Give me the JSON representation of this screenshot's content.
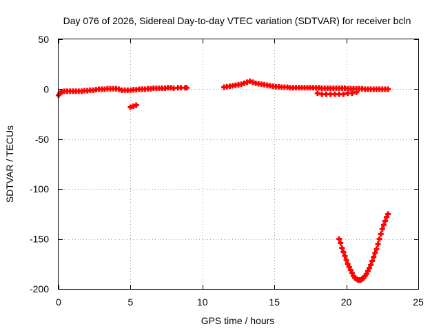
{
  "chart_data": {
    "type": "scatter",
    "title": "Day 076 of 2026, Sidereal Day-to-day VTEC variation (SDTVAR) for receiver bcln",
    "xlabel": "GPS time / hours",
    "ylabel": "SDTVAR / TECUs",
    "xlim": [
      0,
      25
    ],
    "ylim": [
      -200,
      50
    ],
    "xticks": [
      0,
      5,
      10,
      15,
      20,
      25
    ],
    "yticks": [
      50,
      0,
      -50,
      -100,
      -150,
      -200
    ],
    "grid": true,
    "marker_color": "#ff0000",
    "series": [
      {
        "name": "SDTVAR",
        "points": [
          [
            0.0,
            -6
          ],
          [
            0.1,
            -4
          ],
          [
            0.2,
            -3
          ],
          [
            0.4,
            -2
          ],
          [
            0.6,
            -2
          ],
          [
            0.8,
            -2
          ],
          [
            1.0,
            -2
          ],
          [
            1.2,
            -2
          ],
          [
            1.4,
            -2
          ],
          [
            1.6,
            -2
          ],
          [
            1.8,
            -1.5
          ],
          [
            2.0,
            -1.5
          ],
          [
            2.2,
            -1
          ],
          [
            2.4,
            -1
          ],
          [
            2.6,
            -0.5
          ],
          [
            2.8,
            0
          ],
          [
            3.0,
            0
          ],
          [
            3.2,
            0
          ],
          [
            3.4,
            0.5
          ],
          [
            3.6,
            0.5
          ],
          [
            3.8,
            0.5
          ],
          [
            4.0,
            0.5
          ],
          [
            4.2,
            0
          ],
          [
            4.4,
            -1
          ],
          [
            4.6,
            -1
          ],
          [
            4.8,
            -1
          ],
          [
            5.0,
            -1
          ],
          [
            5.2,
            -0.5
          ],
          [
            5.4,
            -0.5
          ],
          [
            5.6,
            0
          ],
          [
            5.8,
            0
          ],
          [
            6.0,
            0
          ],
          [
            6.2,
            0.5
          ],
          [
            6.4,
            0.5
          ],
          [
            6.6,
            1
          ],
          [
            6.8,
            1
          ],
          [
            7.0,
            1
          ],
          [
            7.2,
            1
          ],
          [
            7.4,
            1
          ],
          [
            7.6,
            1.5
          ],
          [
            7.8,
            1.5
          ],
          [
            8.0,
            1
          ],
          [
            8.3,
            1.5
          ],
          [
            8.5,
            1.5
          ],
          [
            8.8,
            1.5
          ],
          [
            8.9,
            1.5
          ],
          [
            5.0,
            -18
          ],
          [
            5.2,
            -17
          ],
          [
            5.4,
            -16
          ],
          [
            11.5,
            2
          ],
          [
            11.7,
            2.5
          ],
          [
            11.9,
            3
          ],
          [
            12.1,
            3.5
          ],
          [
            12.3,
            4
          ],
          [
            12.5,
            4.5
          ],
          [
            12.7,
            5
          ],
          [
            12.9,
            6
          ],
          [
            13.1,
            7
          ],
          [
            13.3,
            8
          ],
          [
            13.5,
            7
          ],
          [
            13.7,
            6
          ],
          [
            13.9,
            5.5
          ],
          [
            14.1,
            5
          ],
          [
            14.3,
            4.5
          ],
          [
            14.5,
            4
          ],
          [
            14.7,
            3.5
          ],
          [
            14.9,
            3
          ],
          [
            15.1,
            2.5
          ],
          [
            15.3,
            2.5
          ],
          [
            15.5,
            2
          ],
          [
            15.7,
            2
          ],
          [
            15.9,
            2
          ],
          [
            16.1,
            1.5
          ],
          [
            16.3,
            1.5
          ],
          [
            16.5,
            1.5
          ],
          [
            16.7,
            1.5
          ],
          [
            16.9,
            1.5
          ],
          [
            17.1,
            1.5
          ],
          [
            17.3,
            1.5
          ],
          [
            17.5,
            1.5
          ],
          [
            17.7,
            1.5
          ],
          [
            17.9,
            1.5
          ],
          [
            18.1,
            1.5
          ],
          [
            18.3,
            1
          ],
          [
            18.5,
            1
          ],
          [
            18.7,
            1
          ],
          [
            18.9,
            1
          ],
          [
            19.1,
            1
          ],
          [
            19.3,
            1
          ],
          [
            19.5,
            1
          ],
          [
            19.7,
            1
          ],
          [
            19.9,
            1
          ],
          [
            20.1,
            0.5
          ],
          [
            20.3,
            0.5
          ],
          [
            20.5,
            0.5
          ],
          [
            20.7,
            0.5
          ],
          [
            20.9,
            0.5
          ],
          [
            21.1,
            0.5
          ],
          [
            21.3,
            0
          ],
          [
            21.5,
            0
          ],
          [
            21.7,
            0
          ],
          [
            21.9,
            0
          ],
          [
            22.1,
            0
          ],
          [
            22.3,
            0
          ],
          [
            22.5,
            0
          ],
          [
            22.7,
            0
          ],
          [
            22.9,
            0
          ],
          [
            18.0,
            -4
          ],
          [
            18.3,
            -5
          ],
          [
            18.6,
            -5
          ],
          [
            18.9,
            -5
          ],
          [
            19.2,
            -5
          ],
          [
            19.5,
            -5
          ],
          [
            19.8,
            -5
          ],
          [
            20.1,
            -4
          ],
          [
            20.4,
            -4
          ],
          [
            20.7,
            -3
          ],
          [
            19.5,
            -150
          ],
          [
            19.6,
            -154
          ],
          [
            19.7,
            -159
          ],
          [
            19.8,
            -163
          ],
          [
            19.9,
            -167
          ],
          [
            20.0,
            -171
          ],
          [
            20.1,
            -175
          ],
          [
            20.2,
            -178
          ],
          [
            20.3,
            -181
          ],
          [
            20.4,
            -184
          ],
          [
            20.5,
            -187
          ],
          [
            20.6,
            -189
          ],
          [
            20.7,
            -190
          ],
          [
            20.8,
            -191
          ],
          [
            20.9,
            -191
          ],
          [
            21.0,
            -191
          ],
          [
            21.1,
            -190
          ],
          [
            21.2,
            -189
          ],
          [
            21.3,
            -187
          ],
          [
            21.4,
            -185
          ],
          [
            21.5,
            -182
          ],
          [
            21.6,
            -179
          ],
          [
            21.7,
            -176
          ],
          [
            21.8,
            -172
          ],
          [
            21.9,
            -168
          ],
          [
            22.0,
            -164
          ],
          [
            22.1,
            -160
          ],
          [
            22.2,
            -155
          ],
          [
            22.3,
            -150
          ],
          [
            22.4,
            -145
          ],
          [
            22.5,
            -140
          ],
          [
            22.6,
            -136
          ],
          [
            22.7,
            -132
          ],
          [
            22.8,
            -128
          ],
          [
            22.9,
            -125
          ]
        ]
      }
    ]
  }
}
